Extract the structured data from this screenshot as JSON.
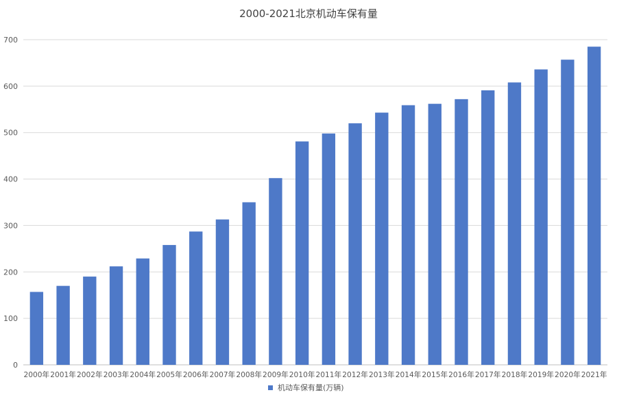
{
  "chart_data": {
    "type": "bar",
    "title": "2000-2021北京机动车保有量",
    "categories": [
      "2000年",
      "2001年",
      "2002年",
      "2003年",
      "2004年",
      "2005年",
      "2006年",
      "2007年",
      "2008年",
      "2009年",
      "2010年",
      "2011年",
      "2012年",
      "2013年",
      "2014年",
      "2015年",
      "2016年",
      "2017年",
      "2018年",
      "2019年",
      "2020年",
      "2021年"
    ],
    "series": [
      {
        "name": "机动车保有量(万辆)",
        "color": "#4e79c8",
        "values": [
          157,
          170,
          190,
          212,
          229,
          258,
          287,
          313,
          350,
          402,
          481,
          498,
          520,
          543,
          559,
          562,
          572,
          591,
          608,
          636,
          657,
          685
        ]
      }
    ],
    "ylim": [
      0,
      700
    ],
    "yticks": [
      0,
      100,
      200,
      300,
      400,
      500,
      600,
      700
    ],
    "grid": true,
    "legend": "bottom-center"
  }
}
